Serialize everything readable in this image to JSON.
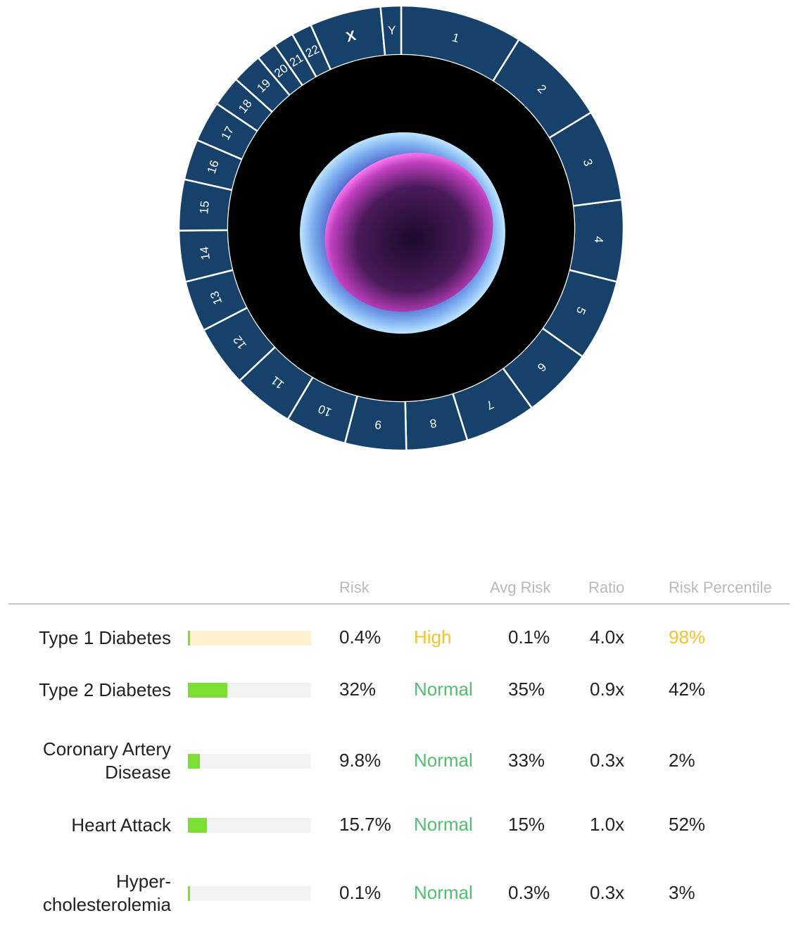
{
  "ring": {
    "segments": [
      "1",
      "2",
      "3",
      "4",
      "5",
      "6",
      "7",
      "8",
      "9",
      "10",
      "11",
      "12",
      "13",
      "14",
      "15",
      "16",
      "17",
      "18",
      "19",
      "20",
      "21",
      "22",
      "X",
      "Y"
    ],
    "weights": [
      12,
      10,
      9,
      8,
      8,
      7,
      7,
      6,
      6,
      6,
      6,
      6,
      5,
      5,
      5,
      4,
      4,
      3,
      3,
      2,
      2,
      2,
      7,
      2
    ],
    "ring_color": "#15416a",
    "inner_color": "#000000",
    "image_description_icon": "cell-illustration"
  },
  "table": {
    "headers": {
      "risk": "Risk",
      "avg_risk": "Avg Risk",
      "ratio": "Ratio",
      "risk_percentile": "Risk Percentile"
    },
    "rows": [
      {
        "condition": [
          "Type 1 Diabetes"
        ],
        "risk_fraction": 0.004,
        "bar_color": "#7be032",
        "track_color": "#fdf1cf",
        "risk": "0.4%",
        "status": "High",
        "avg_risk": "0.1%",
        "ratio": "4.0x",
        "percentile": "98%"
      },
      {
        "condition": [
          "Type 2 Diabetes"
        ],
        "risk_fraction": 0.32,
        "bar_color": "#7be032",
        "track_color": "#f3f3f3",
        "risk": "32%",
        "status": "Normal",
        "avg_risk": "35%",
        "ratio": "0.9x",
        "percentile": "42%"
      },
      {
        "condition": [
          "Coronary Artery",
          "Disease"
        ],
        "risk_fraction": 0.098,
        "bar_color": "#7be032",
        "track_color": "#f3f3f3",
        "risk": "9.8%",
        "status": "Normal",
        "avg_risk": "33%",
        "ratio": "0.3x",
        "percentile": "2%"
      },
      {
        "condition": [
          "Heart Attack"
        ],
        "risk_fraction": 0.157,
        "bar_color": "#7be032",
        "track_color": "#f3f3f3",
        "risk": "15.7%",
        "status": "Normal",
        "avg_risk": "15%",
        "ratio": "1.0x",
        "percentile": "52%"
      },
      {
        "condition": [
          "Hyper-",
          "cholesterolemia"
        ],
        "risk_fraction": 0.001,
        "bar_color": "#7be032",
        "track_color": "#f3f3f3",
        "risk": "0.1%",
        "status": "Normal",
        "avg_risk": "0.3%",
        "ratio": "0.3x",
        "percentile": "3%"
      }
    ]
  }
}
